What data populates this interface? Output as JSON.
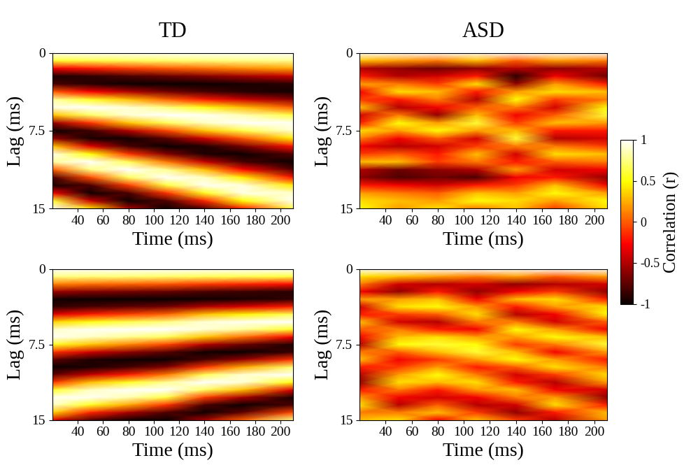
{
  "colorbar": {
    "label": "Correlation (r)",
    "range": [
      -1,
      1
    ],
    "ticks": [
      -1,
      -0.5,
      0,
      0.5,
      1
    ]
  },
  "chart_data": [
    {
      "type": "heatmap",
      "title": "TD",
      "xlabel": "Time (ms)",
      "ylabel": "Lag (ms)",
      "color": "hot",
      "xlim": [
        20,
        210
      ],
      "ylim": [
        15,
        0
      ],
      "xticks": [
        40,
        60,
        80,
        100,
        120,
        140,
        160,
        180,
        200
      ],
      "yticks": [
        0,
        7.5,
        15
      ],
      "x": [
        20,
        50,
        80,
        110,
        140,
        170,
        210
      ],
      "y": [
        0,
        0.75,
        1.5,
        2.25,
        3,
        3.75,
        4.5,
        5.25,
        6,
        6.75,
        7.5,
        8.25,
        9,
        9.75,
        10.5,
        11.25,
        12,
        12.75,
        13.5,
        14.25,
        15
      ],
      "values_by_x": [
        [
          1,
          0.59,
          -0.31,
          -0.95,
          -0.81,
          0,
          0.81,
          0.95,
          0.31,
          -0.59,
          -1,
          -0.59,
          0.31,
          0.95,
          0.81,
          0,
          -0.81,
          -0.95,
          -0.31,
          0.59,
          1
        ],
        [
          1,
          0.63,
          -0.2,
          -0.89,
          -0.92,
          -0.28,
          0.57,
          1.0,
          0.69,
          -0.12,
          -0.84,
          -0.95,
          -0.36,
          0.5,
          0.99,
          0.75,
          -0.04,
          -0.8,
          -0.97,
          -0.43,
          0.42
        ],
        [
          1,
          0.67,
          -0.1,
          -0.81,
          -0.98,
          -0.5,
          0.3,
          0.91,
          0.91,
          0.32,
          -0.49,
          -0.98,
          -0.82,
          -0.11,
          0.66,
          1.0,
          0.68,
          -0.09,
          -0.8,
          -0.98,
          -0.52
        ],
        [
          1,
          0.7,
          -0.01,
          -0.72,
          -1.0,
          -0.68,
          0.03,
          0.74,
          1.0,
          0.67,
          -0.07,
          -0.76,
          -1.0,
          -0.64,
          0.09,
          0.78,
          0.99,
          0.62,
          -0.12,
          -0.79,
          -0.99
        ],
        [
          1,
          0.73,
          0.06,
          -0.64,
          -0.99,
          -0.81,
          -0.19,
          0.53,
          0.97,
          0.88,
          0.32,
          -0.41,
          -0.93,
          -0.94,
          -0.44,
          0.29,
          0.87,
          0.97,
          0.56,
          -0.16,
          -0.79
        ],
        [
          1,
          0.75,
          0.14,
          -0.54,
          -0.96,
          -0.91,
          -0.41,
          0.29,
          0.85,
          0.99,
          0.64,
          -0.02,
          -0.68,
          -0.99,
          -0.82,
          -0.25,
          0.45,
          0.93,
          0.95,
          0.5,
          -0.19
        ],
        [
          1,
          0.78,
          0.22,
          -0.43,
          -0.9,
          -0.97,
          -0.62,
          0,
          0.62,
          0.97,
          0.9,
          0.43,
          -0.22,
          -0.78,
          -1,
          -0.78,
          -0.22,
          0.43,
          0.9,
          0.97,
          0.62
        ]
      ]
    },
    {
      "type": "heatmap",
      "title": "ASD",
      "xlabel": "Time (ms)",
      "ylabel": "Lag (ms)",
      "color": "hot",
      "xlim": [
        20,
        210
      ],
      "ylim": [
        15,
        0
      ],
      "xticks": [
        40,
        60,
        80,
        100,
        120,
        140,
        160,
        180,
        200
      ],
      "yticks": [
        0,
        7.5,
        15
      ],
      "x": [
        20,
        50,
        80,
        110,
        140,
        170,
        210
      ],
      "y": [
        0,
        0.75,
        1.5,
        2.25,
        3,
        3.75,
        4.5,
        5.25,
        6,
        6.75,
        7.5,
        8.25,
        9,
        9.75,
        10.5,
        11.25,
        12,
        12.75,
        13.5,
        14.25,
        15
      ],
      "values_by_x": [
        [
          1,
          0.3,
          -0.5,
          -0.2,
          0.2,
          -0.3,
          -0.1,
          0.3,
          -0.4,
          -0.2,
          0.4,
          0.1,
          -0.3,
          -0.1,
          0.3,
          -0.5,
          -0.6,
          -0.2,
          0.2,
          0.4,
          0.5
        ],
        [
          1,
          0.2,
          -0.6,
          -0.5,
          0.1,
          0.4,
          -0.2,
          -0.5,
          0.1,
          0.5,
          0.2,
          -0.3,
          -0.5,
          0.0,
          0.3,
          -0.7,
          -0.8,
          -0.3,
          0.1,
          0.3,
          0.2
        ],
        [
          1,
          0.1,
          -0.7,
          -0.4,
          -0.1,
          0.3,
          0.1,
          -0.3,
          -0.6,
          0.2,
          0.5,
          0.0,
          -0.4,
          -0.2,
          -0.1,
          -0.6,
          -0.7,
          -0.4,
          0.0,
          0.2,
          0.4
        ],
        [
          1,
          0.3,
          -0.6,
          -0.2,
          0.4,
          -0.2,
          -0.5,
          0.0,
          0.3,
          0.6,
          0.2,
          -0.4,
          -0.1,
          0.3,
          0.1,
          -0.5,
          -0.8,
          -0.2,
          0.3,
          0.5,
          0.1
        ],
        [
          1,
          0.0,
          -0.5,
          -0.9,
          -0.6,
          0.2,
          0.5,
          0.1,
          -0.3,
          -0.1,
          0.3,
          0.6,
          0.1,
          -0.4,
          -0.2,
          0.2,
          -0.3,
          -0.1,
          0.2,
          0.4,
          0.3
        ],
        [
          1,
          0.2,
          -0.6,
          -0.3,
          0.2,
          0.4,
          -0.1,
          -0.4,
          0.0,
          0.3,
          -0.2,
          -0.5,
          0.1,
          0.4,
          0.0,
          -0.4,
          -0.2,
          0.3,
          0.5,
          0.2,
          -0.1
        ],
        [
          1,
          0.1,
          -0.5,
          -0.7,
          -0.2,
          0.3,
          0.1,
          0.5,
          0.6,
          0.2,
          -0.2,
          -0.4,
          -0.1,
          0.3,
          0.1,
          -0.3,
          -0.6,
          -0.3,
          0.2,
          0.5,
          0.4
        ]
      ]
    },
    {
      "type": "heatmap",
      "xlabel": "Time (ms)",
      "ylabel": "Lag (ms)",
      "color": "hot",
      "xlim": [
        20,
        210
      ],
      "ylim": [
        15,
        0
      ],
      "xticks": [
        40,
        60,
        80,
        100,
        120,
        140,
        160,
        180,
        200
      ],
      "yticks": [
        0,
        7.5,
        15
      ],
      "x": [
        20,
        50,
        80,
        110,
        140,
        170,
        210
      ],
      "y": [
        0,
        0.75,
        1.5,
        2.25,
        3,
        3.75,
        4.5,
        5.25,
        6,
        6.75,
        7.5,
        8.25,
        9,
        9.75,
        10.5,
        11.25,
        12,
        12.75,
        13.5,
        14.25,
        15
      ],
      "values_by_x": [
        [
          1,
          0.75,
          0.12,
          -0.57,
          -0.97,
          -0.89,
          -0.36,
          0.36,
          0.89,
          0.97,
          0.57,
          -0.12,
          -0.75,
          -1,
          -0.75,
          -0.12,
          0.57,
          0.97,
          0.89,
          0.36,
          -0.36
        ],
        [
          1,
          0.73,
          0.06,
          -0.64,
          -0.99,
          -0.81,
          -0.19,
          0.53,
          0.97,
          0.88,
          0.32,
          -0.41,
          -0.93,
          -0.94,
          -0.44,
          0.29,
          0.87,
          0.97,
          0.56,
          -0.16,
          -0.79
        ],
        [
          1,
          0.72,
          0.03,
          -0.68,
          -1.0,
          -0.75,
          -0.08,
          0.64,
          0.99,
          0.78,
          0.13,
          -0.6,
          -0.99,
          -0.82,
          -0.18,
          0.56,
          0.98,
          0.84,
          0.23,
          -0.52,
          -0.97
        ],
        [
          1,
          0.7,
          -0.01,
          -0.72,
          -1.0,
          -0.68,
          0.03,
          0.74,
          1.0,
          0.67,
          -0.07,
          -0.76,
          -1.0,
          -0.64,
          0.09,
          0.78,
          0.99,
          0.62,
          -0.12,
          -0.79,
          -0.99
        ],
        [
          1,
          0.67,
          -0.1,
          -0.81,
          -0.98,
          -0.5,
          0.3,
          0.91,
          0.91,
          0.32,
          -0.49,
          -0.98,
          -0.82,
          -0.11,
          0.66,
          1.0,
          0.68,
          -0.09,
          -0.8,
          -0.98,
          -0.52
        ],
        [
          1,
          0.65,
          -0.16,
          -0.85,
          -0.95,
          -0.38,
          0.46,
          0.97,
          0.8,
          0.07,
          -0.71,
          -1.0,
          -0.58,
          0.24,
          0.9,
          0.92,
          0.3,
          -0.53,
          -0.99,
          -0.75,
          0.01
        ],
        [
          1,
          0.62,
          -0.24,
          -0.91,
          -0.89,
          -0.18,
          0.66,
          1.0,
          0.57,
          -0.3,
          -0.93,
          -0.86,
          -0.12,
          0.71,
          0.99,
          0.52,
          -0.36,
          -0.95,
          -0.82,
          -0.06,
          0.75
        ]
      ]
    },
    {
      "type": "heatmap",
      "xlabel": "Time (ms)",
      "ylabel": "Lag (ms)",
      "color": "hot",
      "xlim": [
        20,
        210
      ],
      "ylim": [
        15,
        0
      ],
      "xticks": [
        40,
        60,
        80,
        100,
        120,
        140,
        160,
        180,
        200
      ],
      "yticks": [
        0,
        7.5,
        15
      ],
      "x": [
        20,
        50,
        80,
        110,
        140,
        170,
        210
      ],
      "y": [
        0,
        0.75,
        1.5,
        2.25,
        3,
        3.75,
        4.5,
        5.25,
        6,
        6.75,
        7.5,
        8.25,
        9,
        9.75,
        10.5,
        11.25,
        12,
        12.75,
        13.5,
        14.25,
        15
      ],
      "values_by_x": [
        [
          1,
          0.4,
          0.1,
          -0.3,
          0.2,
          -0.4,
          -0.2,
          0.3,
          0.0,
          -0.3,
          -0.5,
          0.1,
          0.3,
          -0.2,
          -0.5,
          -0.6,
          -0.2,
          0.2,
          0.4,
          0.1,
          0.3
        ],
        [
          1,
          0.3,
          -0.4,
          -0.6,
          0.2,
          0.4,
          -0.1,
          -0.4,
          0.1,
          0.3,
          0.5,
          0.0,
          -0.3,
          -0.1,
          0.2,
          0.4,
          0.1,
          -0.3,
          -0.5,
          0.1,
          0.4
        ],
        [
          1,
          0.2,
          -0.5,
          -0.2,
          0.3,
          0.5,
          0.0,
          -0.5,
          -0.2,
          0.4,
          0.6,
          0.3,
          -0.1,
          0.2,
          0.5,
          0.3,
          -0.2,
          -0.4,
          0.0,
          0.3,
          -0.3
        ],
        [
          1,
          0.1,
          -0.4,
          -0.6,
          -0.3,
          0.2,
          0.4,
          0.1,
          -0.3,
          0.2,
          0.5,
          0.6,
          0.2,
          -0.2,
          0.1,
          0.4,
          0.2,
          -0.3,
          -0.5,
          -0.1,
          0.3
        ],
        [
          1,
          0.2,
          -0.6,
          -0.3,
          0.3,
          -0.2,
          -0.5,
          0.1,
          0.5,
          0.2,
          -0.1,
          0.3,
          0.5,
          0.0,
          -0.4,
          -0.2,
          0.3,
          0.1,
          -0.4,
          -0.6,
          -0.1
        ],
        [
          1,
          0.0,
          -0.5,
          -0.1,
          0.4,
          0.2,
          -0.3,
          -0.4,
          0.2,
          0.5,
          0.1,
          -0.3,
          0.2,
          0.4,
          -0.1,
          -0.5,
          -0.3,
          0.2,
          0.4,
          -0.2,
          -0.5
        ],
        [
          1,
          0.2,
          -0.4,
          -0.6,
          -0.2,
          0.4,
          0.5,
          0.0,
          -0.3,
          0.3,
          0.6,
          0.2,
          -0.2,
          0.1,
          0.4,
          0.2,
          -0.4,
          -0.6,
          -0.2,
          0.3,
          0.2
        ]
      ]
    }
  ]
}
